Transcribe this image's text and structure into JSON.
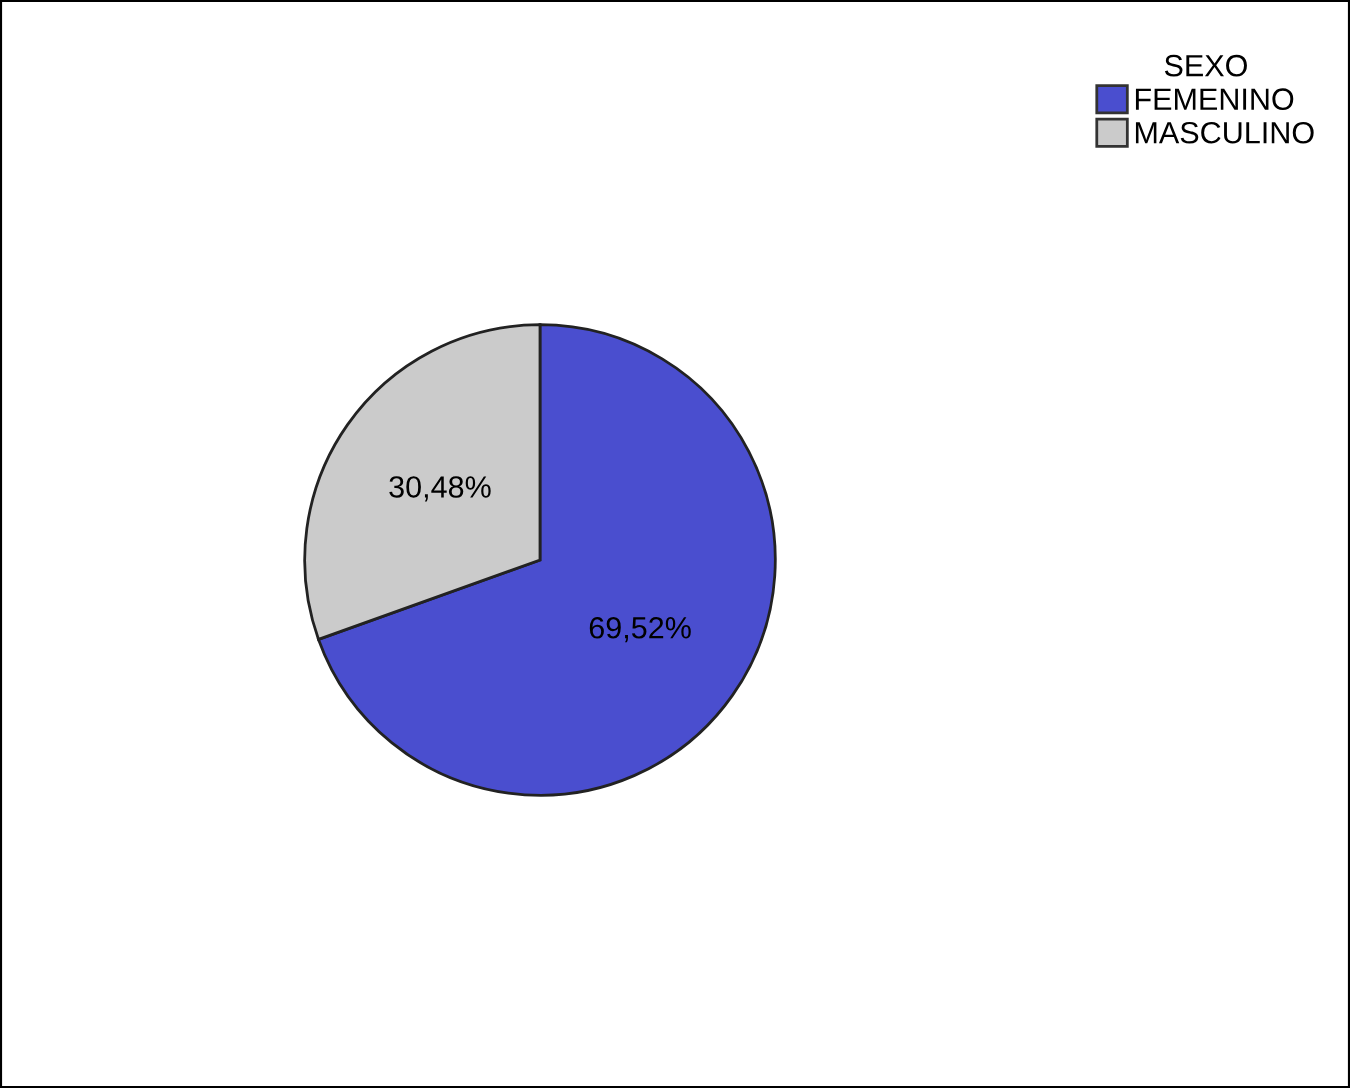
{
  "chart_data": {
    "type": "pie",
    "legend_title": "SEXO",
    "categories": [
      "FEMENINO",
      "MASCULINO"
    ],
    "values": [
      69.52,
      30.48
    ],
    "colors": [
      "#4a4ecf",
      "#cbcbcb"
    ],
    "value_labels": [
      "69,52%",
      "30,48%"
    ],
    "legend": "top right"
  }
}
